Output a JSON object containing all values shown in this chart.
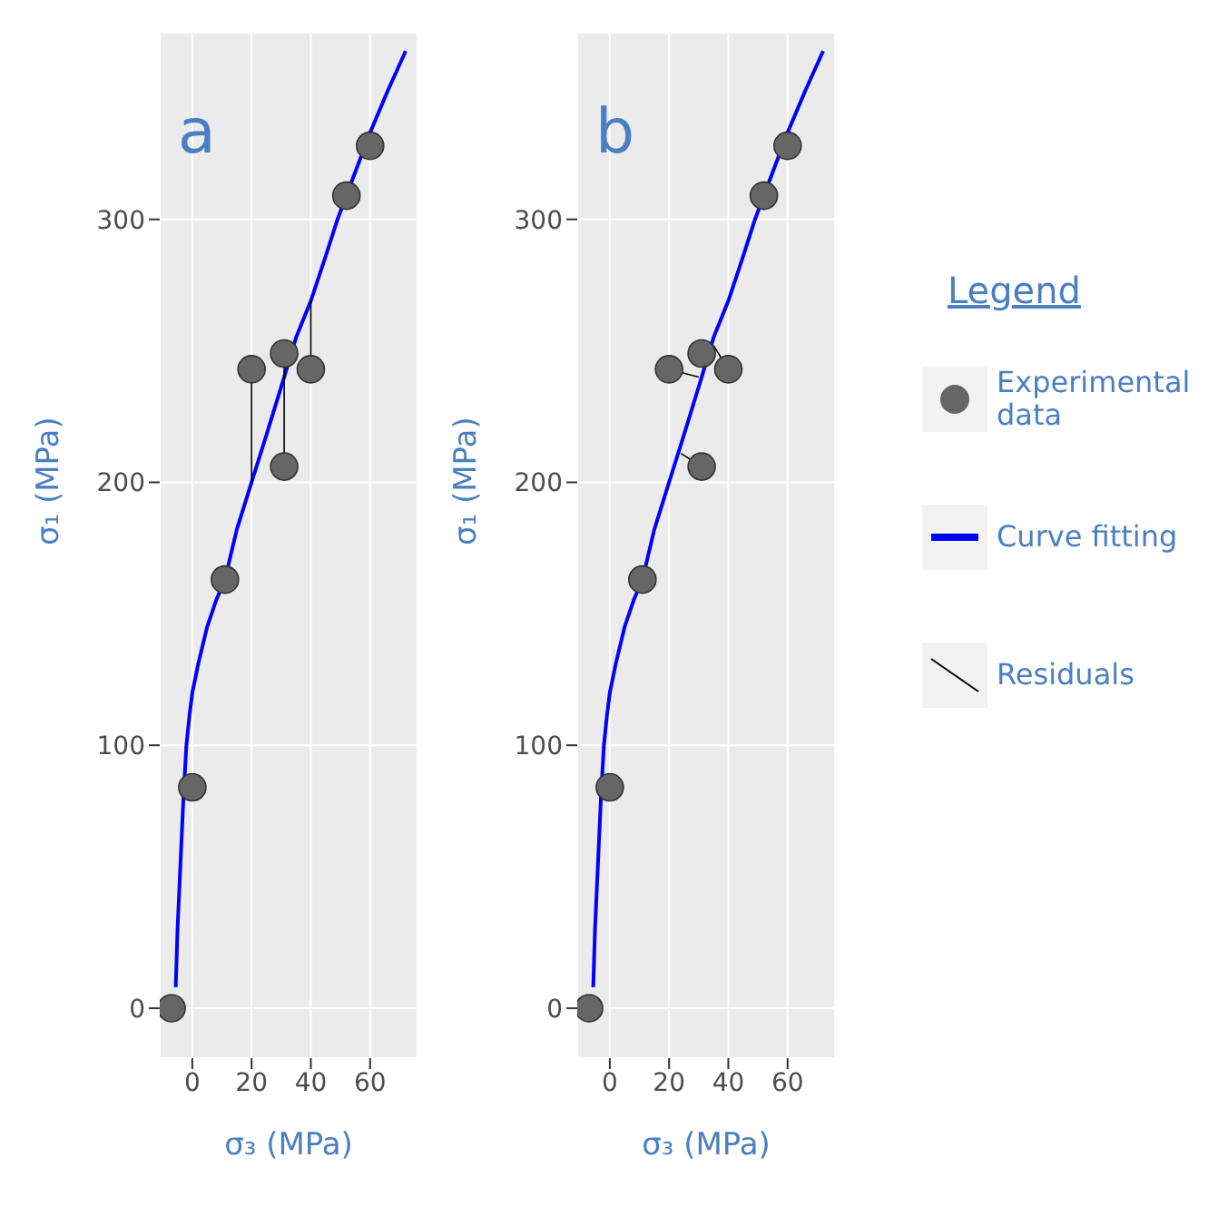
{
  "chart_data": [
    {
      "type": "scatter",
      "title": "a",
      "xlabel": "σ₃ (MPa)",
      "ylabel": "σ₁ (MPa)",
      "xlim": [
        -11,
        76
      ],
      "ylim": [
        -19,
        371
      ],
      "xticks": [
        0,
        20,
        40,
        60
      ],
      "yticks": [
        0,
        100,
        200,
        300
      ],
      "grid": true,
      "legend": false,
      "series": [
        {
          "type": "scatter",
          "marker": "circle",
          "color": "#666666",
          "x": [
            -7,
            0,
            11,
            20,
            31,
            31,
            40,
            52,
            60
          ],
          "values": [
            0,
            84,
            163,
            243,
            249,
            206,
            243,
            309,
            328
          ]
        },
        {
          "type": "line",
          "marker": "none",
          "color": "#0000ff",
          "x": [
            -5.6,
            -5,
            -4,
            -3,
            -2,
            -1,
            0,
            2,
            5,
            8,
            11,
            15,
            20,
            25,
            31,
            35,
            40,
            45,
            49,
            55,
            60,
            66,
            72
          ],
          "values": [
            8,
            30,
            55,
            80,
            100,
            111,
            120,
            131,
            145,
            155,
            163,
            182,
            200,
            218,
            240,
            255,
            269,
            286,
            300,
            318,
            333,
            349,
            364
          ]
        },
        {
          "type": "line",
          "marker": "none",
          "color": "#000000",
          "x": [
            20,
            20,
            null,
            31,
            31,
            null,
            40,
            40
          ],
          "values": [
            243,
            200,
            null,
            206,
            249,
            null,
            243,
            269
          ]
        }
      ]
    },
    {
      "type": "scatter",
      "title": "b",
      "xlabel": "σ₃ (MPa)",
      "ylabel": "σ₁ (MPa)",
      "xlim": [
        -11,
        76
      ],
      "ylim": [
        -19,
        371
      ],
      "xticks": [
        0,
        20,
        40,
        60
      ],
      "yticks": [
        0,
        100,
        200,
        300
      ],
      "grid": true,
      "legend": "right",
      "legend_title": "Legend",
      "series": [
        {
          "type": "scatter",
          "name": "Experimental data",
          "marker": "circle",
          "color": "#666666",
          "x": [
            -7,
            0,
            11,
            20,
            31,
            31,
            40,
            52,
            60
          ],
          "values": [
            0,
            84,
            163,
            243,
            249,
            206,
            243,
            309,
            328
          ]
        },
        {
          "type": "line",
          "name": "Curve fitting",
          "marker": "none",
          "color": "#0000ff",
          "x": [
            -5.6,
            -5,
            -4,
            -3,
            -2,
            -1,
            0,
            2,
            5,
            8,
            11,
            15,
            20,
            25,
            31,
            35,
            40,
            45,
            49,
            55,
            60,
            66,
            72
          ],
          "values": [
            8,
            30,
            55,
            80,
            100,
            111,
            120,
            131,
            145,
            155,
            163,
            182,
            200,
            218,
            240,
            255,
            269,
            286,
            300,
            318,
            333,
            349,
            364
          ]
        },
        {
          "type": "line",
          "name": "Residuals",
          "marker": "none",
          "color": "#000000",
          "x": [
            20,
            30,
            null,
            31,
            24,
            null,
            40,
            35
          ],
          "values": [
            243,
            240,
            null,
            206,
            211,
            null,
            243,
            252
          ]
        }
      ]
    }
  ]
}
